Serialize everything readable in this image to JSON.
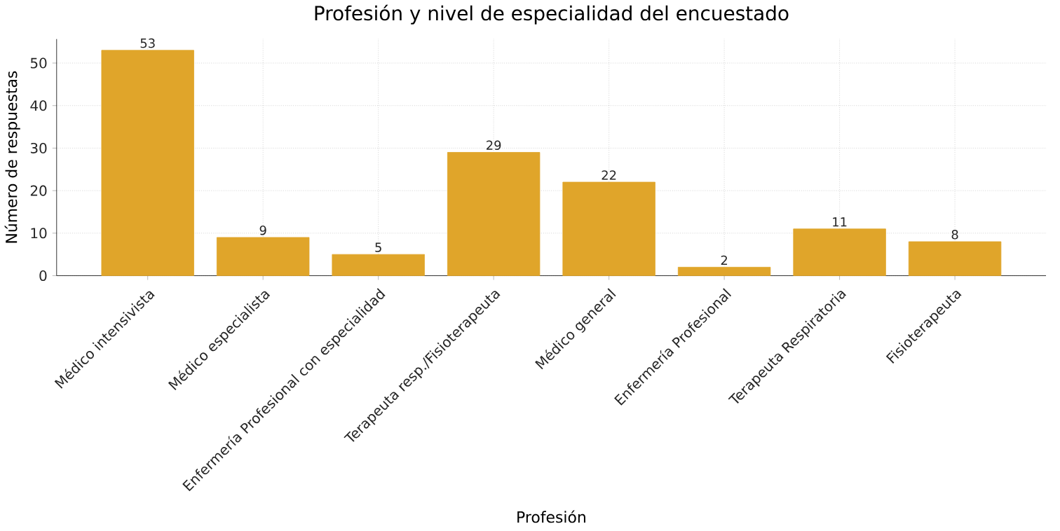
{
  "chart_data": {
    "type": "bar",
    "title": "Profesión y nivel de especialidad del encuestado",
    "xlabel": "Profesión",
    "ylabel": "Número de respuestas",
    "categories": [
      "Médico intensivista",
      "Médico especialista",
      "Enfermería Profesional con especialidad",
      "Terapeuta resp./Fisioterapeuta",
      "Médico general",
      "Enfermería Profesional",
      "Terapeuta Respiratoria",
      "Fisioterapeuta"
    ],
    "values": [
      53,
      9,
      5,
      29,
      22,
      2,
      11,
      8
    ],
    "color": "#e0a52a",
    "ylim": [
      0,
      55.65
    ],
    "yticks": [
      0,
      10,
      20,
      30,
      40,
      50
    ],
    "grid": true,
    "data_labels": true
  }
}
